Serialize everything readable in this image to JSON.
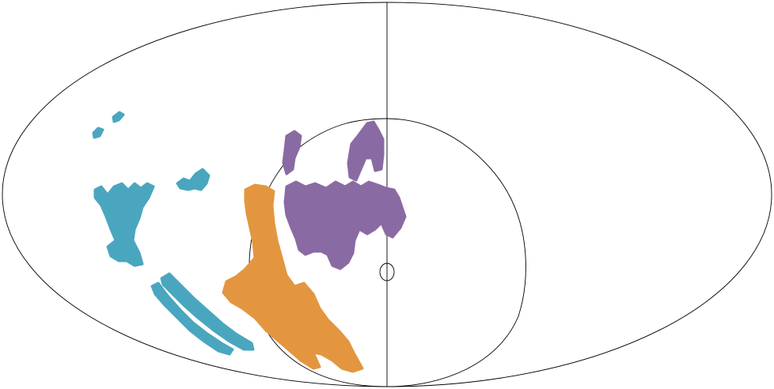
{
  "map": {
    "projection": "mollweide",
    "background": "#ffffff",
    "outline_color": "#000000"
  },
  "regions": [
    {
      "name": "cyan-group",
      "color": "#4aa6bf"
    },
    {
      "name": "orange-group",
      "color": "#e3963f"
    },
    {
      "name": "purple-group",
      "color": "#8a6aa3"
    }
  ]
}
